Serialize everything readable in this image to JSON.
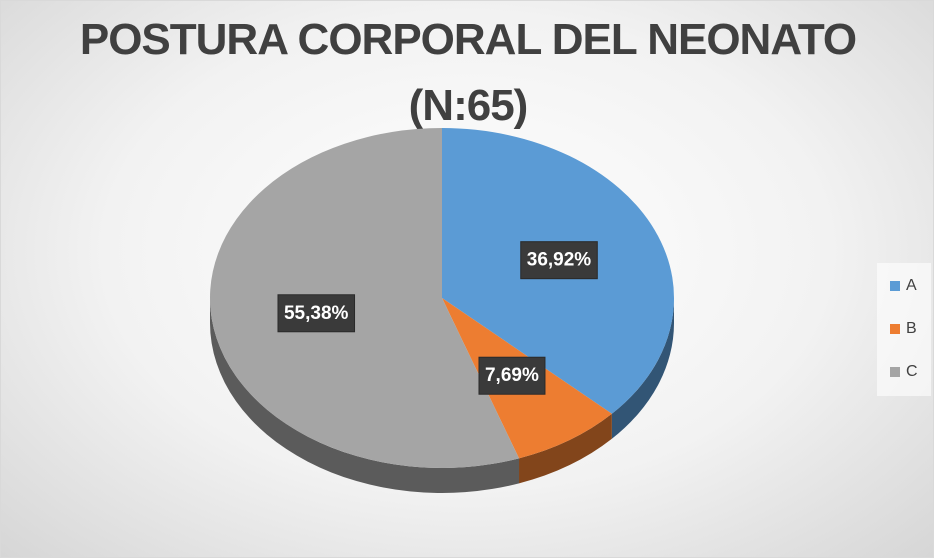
{
  "chart_data": {
    "type": "pie",
    "title": "POSTURA CORPORAL DEL NEONATO (N:65)",
    "categories": [
      "A",
      "B",
      "C"
    ],
    "values": [
      36.92,
      7.69,
      55.38
    ],
    "value_labels": [
      "36,92%",
      "7,69%",
      "55,38%"
    ],
    "colors": [
      "#5b9bd5",
      "#ed7d31",
      "#a5a5a5"
    ],
    "legend": "right"
  }
}
